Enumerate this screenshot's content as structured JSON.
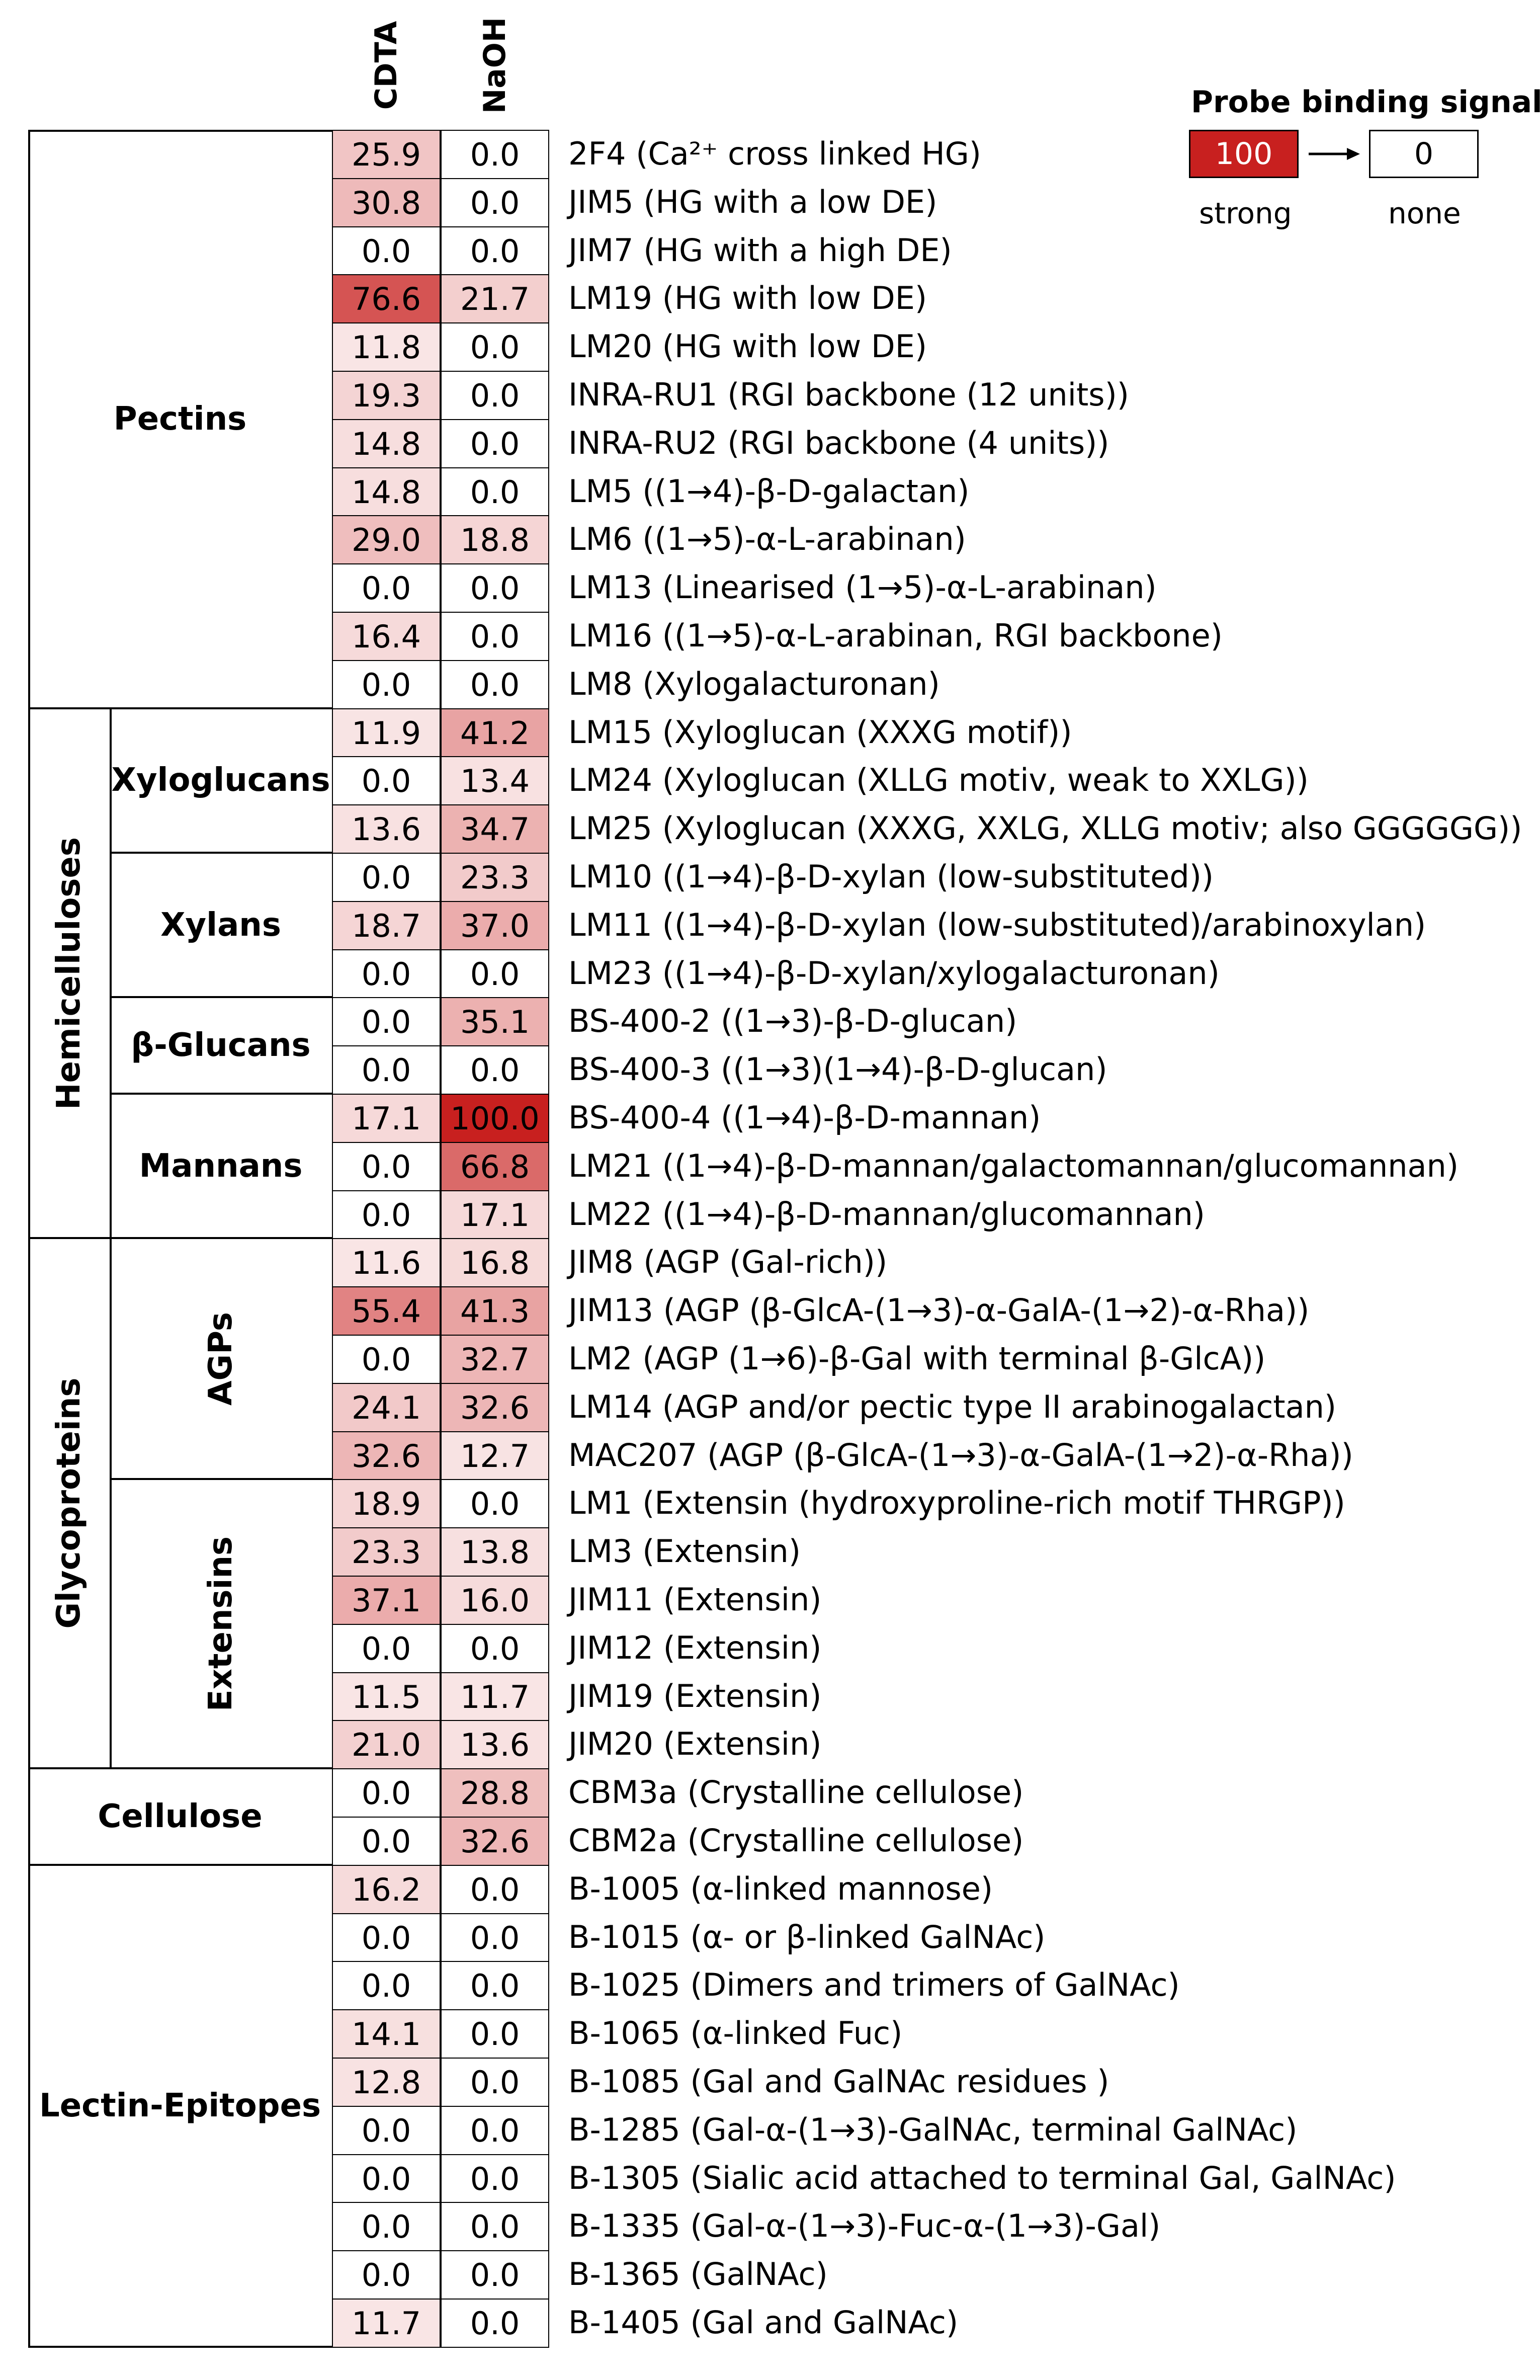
{
  "chart_data": {
    "type": "heatmap",
    "columns": [
      "CDTA",
      "NaOH"
    ],
    "legend": {
      "title": "Probe binding signal",
      "max_label": "100",
      "min_label": "0",
      "strong_label": "strong",
      "none_label": "none",
      "max_color": "#c8201f",
      "min_color": "#ffffff"
    },
    "groups": [
      {
        "name": "Pectins",
        "start": 0,
        "end": 11
      },
      {
        "name": "Hemicelluloses",
        "start": 12,
        "end": 22,
        "subgroups": [
          {
            "name": "Xyloglucans",
            "start": 12,
            "end": 14
          },
          {
            "name": "Xylans",
            "start": 15,
            "end": 17
          },
          {
            "name": "β-Glucans",
            "start": 18,
            "end": 19
          },
          {
            "name": "Mannans",
            "start": 20,
            "end": 22
          }
        ]
      },
      {
        "name": "Glycoproteins",
        "start": 23,
        "end": 33,
        "subgroups": [
          {
            "name": "AGPs",
            "start": 23,
            "end": 27
          },
          {
            "name": "Extensins",
            "start": 28,
            "end": 33
          }
        ]
      },
      {
        "name": "Cellulose",
        "start": 34,
        "end": 35
      },
      {
        "name": "Lectin-Epitopes",
        "start": 36,
        "end": 45
      }
    ],
    "rows": [
      {
        "cdta": "25.9",
        "naoh": "0.0",
        "label": "2F4 (Ca²⁺ cross linked HG)"
      },
      {
        "cdta": "30.8",
        "naoh": "0.0",
        "label": "JIM5 (HG with a low DE)"
      },
      {
        "cdta": "0.0",
        "naoh": "0.0",
        "label": "JIM7 (HG with a high DE)"
      },
      {
        "cdta": "76.6",
        "naoh": "21.7",
        "label": "LM19 (HG with low DE)"
      },
      {
        "cdta": "11.8",
        "naoh": "0.0",
        "label": "LM20 (HG with low DE)"
      },
      {
        "cdta": "19.3",
        "naoh": "0.0",
        "label": "INRA-RU1 (RGI backbone (12 units))"
      },
      {
        "cdta": "14.8",
        "naoh": "0.0",
        "label": "INRA-RU2 (RGI backbone (4 units))"
      },
      {
        "cdta": "14.8",
        "naoh": "0.0",
        "label": "LM5 ((1→4)-β-D-galactan)"
      },
      {
        "cdta": "29.0",
        "naoh": "18.8",
        "label": "LM6 ((1→5)-α-L-arabinan)"
      },
      {
        "cdta": "0.0",
        "naoh": "0.0",
        "label": "LM13 (Linearised (1→5)-α-L-arabinan)"
      },
      {
        "cdta": "16.4",
        "naoh": "0.0",
        "label": "LM16 ((1→5)-α-L-arabinan, RGI backbone)"
      },
      {
        "cdta": "0.0",
        "naoh": "0.0",
        "label": "LM8 (Xylogalacturonan)"
      },
      {
        "cdta": "11.9",
        "naoh": "41.2",
        "label": "LM15 (Xyloglucan (XXXG motif))"
      },
      {
        "cdta": "0.0",
        "naoh": "13.4",
        "label": "LM24 (Xyloglucan (XLLG motiv, weak to XXLG))"
      },
      {
        "cdta": "13.6",
        "naoh": "34.7",
        "label": "LM25 (Xyloglucan (XXXG, XXLG, XLLG motiv; also GGGGGG))"
      },
      {
        "cdta": "0.0",
        "naoh": "23.3",
        "label": "LM10 ((1→4)-β-D-xylan (low-substituted))"
      },
      {
        "cdta": "18.7",
        "naoh": "37.0",
        "label": "LM11 ((1→4)-β-D-xylan (low-substituted)/arabinoxylan)"
      },
      {
        "cdta": "0.0",
        "naoh": "0.0",
        "label": "LM23 ((1→4)-β-D-xylan/xylogalacturonan)"
      },
      {
        "cdta": "0.0",
        "naoh": "35.1",
        "label": "BS-400-2 ((1→3)-β-D-glucan)"
      },
      {
        "cdta": "0.0",
        "naoh": "0.0",
        "label": "BS-400-3 ((1→3)(1→4)-β-D-glucan)"
      },
      {
        "cdta": "17.1",
        "naoh": "100.0",
        "label": "BS-400-4 ((1→4)-β-D-mannan)"
      },
      {
        "cdta": "0.0",
        "naoh": "66.8",
        "label": "LM21 ((1→4)-β-D-mannan/galactomannan/glucomannan)"
      },
      {
        "cdta": "0.0",
        "naoh": "17.1",
        "label": "LM22 ((1→4)-β-D-mannan/glucomannan)"
      },
      {
        "cdta": "11.6",
        "naoh": "16.8",
        "label": "JIM8 (AGP (Gal-rich))"
      },
      {
        "cdta": "55.4",
        "naoh": "41.3",
        "label": "JIM13 (AGP (β-GlcA-(1→3)-α-GalA-(1→2)-α-Rha))"
      },
      {
        "cdta": "0.0",
        "naoh": "32.7",
        "label": "LM2 (AGP (1→6)-β-Gal with terminal β-GlcA))"
      },
      {
        "cdta": "24.1",
        "naoh": "32.6",
        "label": "LM14 (AGP and/or pectic type II arabinogalactan)"
      },
      {
        "cdta": "32.6",
        "naoh": "12.7",
        "label": "MAC207 (AGP (β-GlcA-(1→3)-α-GalA-(1→2)-α-Rha))"
      },
      {
        "cdta": "18.9",
        "naoh": "0.0",
        "label": "LM1 (Extensin (hydroxyproline-rich motif THRGP))"
      },
      {
        "cdta": "23.3",
        "naoh": "13.8",
        "label": "LM3 (Extensin)"
      },
      {
        "cdta": "37.1",
        "naoh": "16.0",
        "label": "JIM11 (Extensin)"
      },
      {
        "cdta": "0.0",
        "naoh": "0.0",
        "label": "JIM12 (Extensin)"
      },
      {
        "cdta": "11.5",
        "naoh": "11.7",
        "label": "JIM19 (Extensin)"
      },
      {
        "cdta": "21.0",
        "naoh": "13.6",
        "label": "JIM20 (Extensin)"
      },
      {
        "cdta": "0.0",
        "naoh": "28.8",
        "label": "CBM3a (Crystalline cellulose)"
      },
      {
        "cdta": "0.0",
        "naoh": "32.6",
        "label": "CBM2a (Crystalline cellulose)"
      },
      {
        "cdta": "16.2",
        "naoh": "0.0",
        "label": "B-1005 (α-linked mannose)"
      },
      {
        "cdta": "0.0",
        "naoh": "0.0",
        "label": "B-1015 (α- or β-linked GalNAc)"
      },
      {
        "cdta": "0.0",
        "naoh": "0.0",
        "label": "B-1025 (Dimers and trimers of GalNAc)"
      },
      {
        "cdta": "14.1",
        "naoh": "0.0",
        "label": "B-1065 (α-linked Fuc)"
      },
      {
        "cdta": "12.8",
        "naoh": "0.0",
        "label": "B-1085 (Gal and GalNAc residues )"
      },
      {
        "cdta": "0.0",
        "naoh": "0.0",
        "label": "B-1285 (Gal-α-(1→3)-GalNAc, terminal GalNAc)"
      },
      {
        "cdta": "0.0",
        "naoh": "0.0",
        "label": "B-1305 (Sialic acid attached to terminal Gal, GalNAc)"
      },
      {
        "cdta": "0.0",
        "naoh": "0.0",
        "label": "B-1335 (Gal-α-(1→3)-Fuc-α-(1→3)-Gal)"
      },
      {
        "cdta": "0.0",
        "naoh": "0.0",
        "label": "B-1365 (GalNAc)"
      },
      {
        "cdta": "11.7",
        "naoh": "0.0",
        "label": "B-1405 (Gal and GalNAc)"
      }
    ]
  }
}
